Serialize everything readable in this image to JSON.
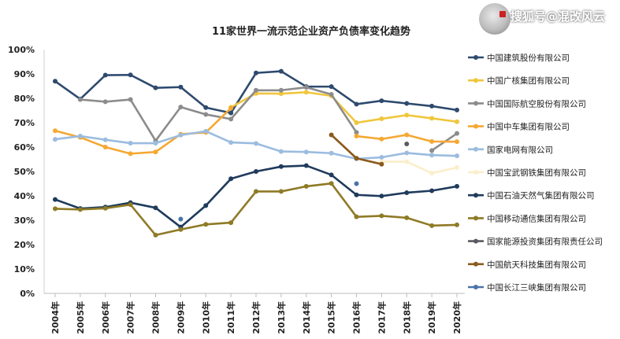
{
  "watermark": {
    "text": "搜狐号@混改风云",
    "logo_text": "混改风云"
  },
  "chart_data": {
    "type": "line",
    "title": "11家世界一流示范企业资产负债率变化趋势",
    "xlabel": "",
    "ylabel": "",
    "ylim": [
      0,
      100
    ],
    "yticks": [
      "0%",
      "10%",
      "20%",
      "30%",
      "40%",
      "50%",
      "60%",
      "70%",
      "80%",
      "90%",
      "100%"
    ],
    "categories": [
      "2004年",
      "2005年",
      "2006年",
      "2007年",
      "2008年",
      "2009年",
      "2010年",
      "2011年",
      "2012年",
      "2013年",
      "2014年",
      "2015年",
      "2016年",
      "2017年",
      "2018年",
      "2019年",
      "2020年"
    ],
    "grid": false,
    "legend_position": "right",
    "series": [
      {
        "name": "中国建筑股份有限公司",
        "color": "#2e4a6e",
        "values": [
          87.0,
          79.7,
          89.5,
          89.6,
          84.3,
          84.6,
          76.2,
          74.0,
          90.4,
          91.1,
          84.8,
          84.8,
          77.6,
          79.0,
          77.9,
          76.8,
          75.2
        ]
      },
      {
        "name": "中国广核集团有限公司",
        "color": "#f0c63c",
        "values": [
          null,
          null,
          null,
          null,
          null,
          null,
          null,
          76.3,
          82.0,
          81.9,
          82.5,
          81.0,
          70.0,
          71.6,
          73.1,
          71.8,
          70.4
        ]
      },
      {
        "name": "中国国际航空股份有限公司",
        "color": "#8c8c8c",
        "values": [
          null,
          79.5,
          78.6,
          79.5,
          62.6,
          76.4,
          73.4,
          71.5,
          83.3,
          83.3,
          84.5,
          81.6,
          66.0,
          null,
          null,
          58.6,
          65.6
        ]
      },
      {
        "name": "中国中车集团有限公司",
        "color": "#f5a833",
        "values": [
          66.7,
          64.0,
          60.0,
          57.3,
          58.0,
          65.3,
          66.0,
          76.0,
          null,
          null,
          null,
          null,
          64.5,
          63.3,
          65.0,
          62.3,
          62.2
        ]
      },
      {
        "name": "国家电网有限公司",
        "color": "#9bbcdf",
        "values": [
          63.2,
          64.5,
          63.0,
          61.6,
          61.6,
          64.9,
          66.5,
          61.9,
          61.5,
          58.2,
          58.0,
          57.5,
          55.2,
          55.8,
          57.6,
          56.7,
          56.4
        ]
      },
      {
        "name": "中国宝武钢铁集团有限公司",
        "color": "#fbeecb",
        "values": [
          null,
          null,
          null,
          null,
          null,
          null,
          null,
          null,
          null,
          null,
          null,
          null,
          null,
          54.0,
          54.0,
          49.3,
          51.6
        ]
      },
      {
        "name": "中国石油天然气集团有限公司",
        "color": "#1f3b5c",
        "values": [
          38.5,
          34.8,
          35.4,
          37.2,
          35.1,
          27.2,
          36.0,
          47.0,
          50.0,
          52.0,
          52.4,
          48.6,
          40.4,
          39.9,
          41.3,
          42.1,
          43.9
        ]
      },
      {
        "name": "中国移动通信集团有限公司",
        "color": "#8f7a26",
        "values": [
          34.7,
          34.4,
          34.9,
          36.4,
          23.9,
          26.2,
          28.3,
          29.0,
          41.8,
          41.8,
          43.9,
          45.1,
          31.4,
          31.8,
          31.0,
          27.8,
          28.1
        ]
      },
      {
        "name": "国家能源投资集团有限责任公司",
        "color": "#5a5a63",
        "values": [
          null,
          null,
          null,
          null,
          null,
          null,
          null,
          null,
          null,
          null,
          null,
          null,
          null,
          null,
          61.3,
          null,
          null
        ]
      },
      {
        "name": "中国航天科技集团有限公司",
        "color": "#8a5a1c",
        "values": [
          null,
          null,
          null,
          null,
          null,
          null,
          null,
          null,
          null,
          null,
          null,
          65.0,
          55.4,
          53.0,
          null,
          null,
          null
        ]
      },
      {
        "name": "中国长江三峡集团有限公司",
        "color": "#4a74a8",
        "values": [
          null,
          null,
          null,
          null,
          null,
          30.5,
          null,
          null,
          null,
          null,
          null,
          null,
          45.0,
          null,
          null,
          null,
          null
        ]
      }
    ]
  }
}
